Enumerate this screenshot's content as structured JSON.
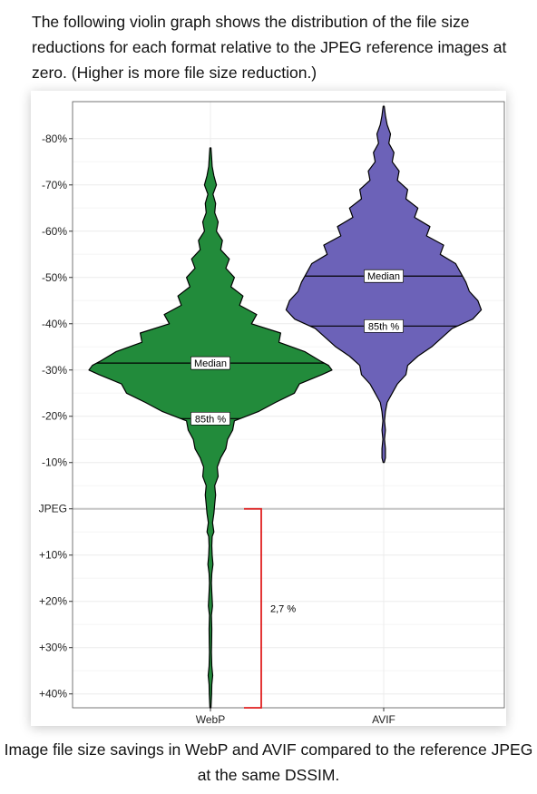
{
  "intro_text": "The following violin graph shows the distribution of the file size reductions for each format relative to the JPEG reference images at zero. (Higher is more file size reduction.)",
  "caption": "Image file size savings in WebP and AVIF compared to the reference JPEG at the same DSSIM.",
  "chart_data": {
    "type": "violin",
    "title": "",
    "xlabel": "",
    "ylabel": "",
    "categories": [
      "WebP",
      "AVIF"
    ],
    "y_axis_reversed": true,
    "ylim": [
      -88,
      43
    ],
    "y_ticks": [
      {
        "value": -80,
        "label": "-80%"
      },
      {
        "value": -70,
        "label": "-70%"
      },
      {
        "value": -60,
        "label": "-60%"
      },
      {
        "value": -50,
        "label": "-50%"
      },
      {
        "value": -40,
        "label": "-40%"
      },
      {
        "value": -30,
        "label": "-30%"
      },
      {
        "value": -20,
        "label": "-20%"
      },
      {
        "value": -10,
        "label": "-10%"
      },
      {
        "value": 0,
        "label": "JPEG"
      },
      {
        "value": 10,
        "label": "+10%"
      },
      {
        "value": 20,
        "label": "+20%"
      },
      {
        "value": 30,
        "label": "+30%"
      },
      {
        "value": 40,
        "label": "+40%"
      }
    ],
    "grid": true,
    "reference_line": {
      "value": 0,
      "color": "#c4c4c4"
    },
    "series": [
      {
        "color": "#228b3b",
        "min": -78,
        "max": 43,
        "median": -31.5,
        "p85": -19.5,
        "median_label": "Median",
        "p85_label": "85th %",
        "density": [
          [
            -78,
            0.3
          ],
          [
            -76,
            0.7
          ],
          [
            -74,
            1
          ],
          [
            -72,
            2
          ],
          [
            -70,
            3.5
          ],
          [
            -68,
            1.5
          ],
          [
            -66,
            3
          ],
          [
            -64,
            2.5
          ],
          [
            -62,
            4.5
          ],
          [
            -60,
            3.5
          ],
          [
            -58,
            7
          ],
          [
            -56,
            6
          ],
          [
            -54,
            11
          ],
          [
            -52,
            9
          ],
          [
            -50,
            14
          ],
          [
            -48,
            12
          ],
          [
            -46,
            19
          ],
          [
            -44,
            17
          ],
          [
            -42,
            27
          ],
          [
            -40,
            24
          ],
          [
            -38,
            41
          ],
          [
            -36,
            40
          ],
          [
            -34,
            55
          ],
          [
            -32,
            64
          ],
          [
            -31,
            69
          ],
          [
            -30,
            71
          ],
          [
            -29,
            65
          ],
          [
            -27,
            52
          ],
          [
            -25,
            49
          ],
          [
            -23,
            38
          ],
          [
            -21,
            28
          ],
          [
            -19,
            14
          ],
          [
            -17,
            13
          ],
          [
            -15,
            10
          ],
          [
            -13,
            9
          ],
          [
            -11,
            6
          ],
          [
            -9,
            4
          ],
          [
            -7,
            4.5
          ],
          [
            -5,
            2.5
          ],
          [
            -3,
            3
          ],
          [
            -1,
            2.5
          ],
          [
            1,
            2
          ],
          [
            3,
            1.2
          ],
          [
            5,
            2
          ],
          [
            6,
            1
          ],
          [
            8,
            0.8
          ],
          [
            10,
            1
          ],
          [
            12,
            1.5
          ],
          [
            14,
            0.8
          ],
          [
            16,
            0.6
          ],
          [
            18,
            0.8
          ],
          [
            21,
            1.2
          ],
          [
            23,
            0.6
          ],
          [
            26,
            0.8
          ],
          [
            29,
            0.7
          ],
          [
            31,
            0.6
          ],
          [
            34,
            0.8
          ],
          [
            36,
            1.3
          ],
          [
            38,
            0.8
          ],
          [
            40,
            0.7
          ],
          [
            43,
            0.3
          ]
        ]
      },
      {
        "color": "#6c62b8",
        "min": -87,
        "max": -10,
        "median": -50.3,
        "p85": -39.5,
        "median_label": "Median",
        "p85_label": "85th %",
        "density": [
          [
            -87,
            0.3
          ],
          [
            -85,
            1
          ],
          [
            -83,
            2
          ],
          [
            -81,
            4
          ],
          [
            -79,
            3
          ],
          [
            -77,
            6
          ],
          [
            -75,
            5
          ],
          [
            -73,
            9
          ],
          [
            -71,
            8
          ],
          [
            -69,
            14
          ],
          [
            -67,
            13
          ],
          [
            -65,
            20
          ],
          [
            -63,
            18
          ],
          [
            -61,
            27
          ],
          [
            -59,
            25
          ],
          [
            -57,
            35
          ],
          [
            -55,
            33
          ],
          [
            -53,
            42
          ],
          [
            -51,
            45
          ],
          [
            -49,
            48
          ],
          [
            -47,
            50
          ],
          [
            -45,
            55
          ],
          [
            -43,
            57
          ],
          [
            -41,
            52
          ],
          [
            -39,
            40
          ],
          [
            -37,
            34
          ],
          [
            -35,
            28
          ],
          [
            -33,
            20
          ],
          [
            -31,
            14
          ],
          [
            -29,
            13
          ],
          [
            -27,
            8
          ],
          [
            -25,
            5
          ],
          [
            -23,
            2
          ],
          [
            -21,
            1
          ],
          [
            -19,
            0.5
          ],
          [
            -17,
            1
          ],
          [
            -15,
            0.5
          ],
          [
            -13,
            1
          ],
          [
            -11,
            1
          ],
          [
            -10,
            0.3
          ]
        ]
      }
    ],
    "annotation": {
      "label": "2,7 %",
      "from": 0,
      "to": 43,
      "color": "#e02020"
    }
  }
}
